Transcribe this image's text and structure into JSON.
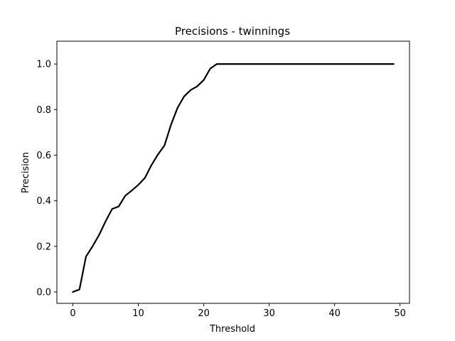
{
  "chart_data": {
    "type": "line",
    "title": "Precisions - twinnings",
    "xlabel": "Threshold",
    "ylabel": "Precision",
    "xlim": [
      -2.45,
      51.45
    ],
    "ylim": [
      -0.05,
      1.1
    ],
    "xticks": [
      0,
      10,
      20,
      30,
      40,
      50
    ],
    "yticks": [
      0.0,
      0.2,
      0.4,
      0.6,
      0.8,
      1.0
    ],
    "xtick_labels": [
      "0",
      "10",
      "20",
      "30",
      "40",
      "50"
    ],
    "ytick_labels": [
      "0.0",
      "0.2",
      "0.4",
      "0.6",
      "0.8",
      "1.0"
    ],
    "grid": false,
    "series": [
      {
        "color": "#000000",
        "x": [
          0,
          1,
          2,
          3,
          4,
          5,
          6,
          7,
          8,
          9,
          10,
          11,
          12,
          13,
          14,
          15,
          16,
          17,
          18,
          19,
          20,
          21,
          22,
          23,
          24,
          25,
          26,
          27,
          28,
          29,
          30,
          31,
          32,
          33,
          34,
          35,
          36,
          37,
          38,
          39,
          40,
          41,
          42,
          43,
          44,
          45,
          46,
          47,
          48,
          49
        ],
        "y": [
          0.0,
          0.011,
          0.155,
          0.2,
          0.25,
          0.31,
          0.364,
          0.375,
          0.422,
          0.445,
          0.47,
          0.5,
          0.556,
          0.603,
          0.643,
          0.734,
          0.808,
          0.858,
          0.886,
          0.902,
          0.93,
          0.98,
          1.0,
          1.0,
          1.0,
          1.0,
          1.0,
          1.0,
          1.0,
          1.0,
          1.0,
          1.0,
          1.0,
          1.0,
          1.0,
          1.0,
          1.0,
          1.0,
          1.0,
          1.0,
          1.0,
          1.0,
          1.0,
          1.0,
          1.0,
          1.0,
          1.0,
          1.0,
          1.0,
          1.0
        ]
      }
    ]
  }
}
